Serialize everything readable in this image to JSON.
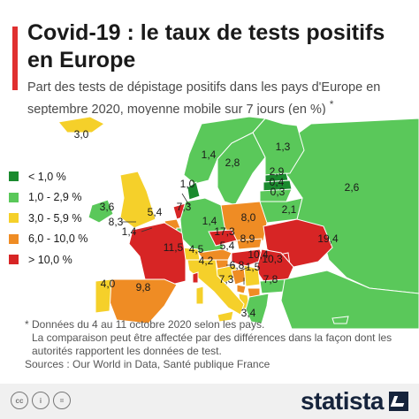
{
  "title": "Covid-19 : le taux de tests positifs en Europe",
  "subtitle": "Part des tests de dépistage positifs dans les pays d'Europe en septembre 2020, moyenne mobile sur 7 jours (en %)",
  "subtitle_marker": "*",
  "legend": [
    {
      "label": "< 1,0 %",
      "color": "#1a8a2e"
    },
    {
      "label": "1,0 - 2,9 %",
      "color": "#5ac85a"
    },
    {
      "label": "3,0 - 5,9 %",
      "color": "#f5d02a"
    },
    {
      "label": "6,0 - 10,0 %",
      "color": "#ef8c24"
    },
    {
      "label": "> 10,0 %",
      "color": "#d72525"
    }
  ],
  "map_values": [
    {
      "label": "3,0"
    },
    {
      "label": "1,3"
    },
    {
      "label": "1,4"
    },
    {
      "label": "2,8"
    },
    {
      "label": "2,9"
    },
    {
      "label": "0,4"
    },
    {
      "label": "0,3"
    },
    {
      "label": "1,0"
    },
    {
      "label": "3,6"
    },
    {
      "label": "5,4"
    },
    {
      "label": "7,3"
    },
    {
      "label": "8,0"
    },
    {
      "label": "2,1"
    },
    {
      "label": "2,6"
    },
    {
      "label": "8,3"
    },
    {
      "label": "1,4"
    },
    {
      "label": "1,4"
    },
    {
      "label": "17,3"
    },
    {
      "label": "19,4"
    },
    {
      "label": "11,5"
    },
    {
      "label": "5,4"
    },
    {
      "label": "8,9"
    },
    {
      "label": "4,5"
    },
    {
      "label": "4,2"
    },
    {
      "label": "10,4"
    },
    {
      "label": "10,3"
    },
    {
      "label": "6,8"
    },
    {
      "label": "1,5"
    },
    {
      "label": "4,0"
    },
    {
      "label": "9,8"
    },
    {
      "label": "7,3"
    },
    {
      "label": "7,8"
    },
    {
      "label": "3,4"
    }
  ],
  "footnote": {
    "line1": "* Données du 4 au 11 octobre 2020 selon les pays.",
    "line2": "La comparaison peut être affectée par des différences dans la façon dont les autorités rapportent les données de test.",
    "sources": "Sources : Our World in Data, Santé publique France"
  },
  "footer": {
    "brand": "statista",
    "license_icons": [
      {
        "name": "cc-icon",
        "glyph": "cc"
      },
      {
        "name": "attribution-icon",
        "glyph": "i"
      },
      {
        "name": "no-derivatives-icon",
        "glyph": "="
      }
    ]
  }
}
